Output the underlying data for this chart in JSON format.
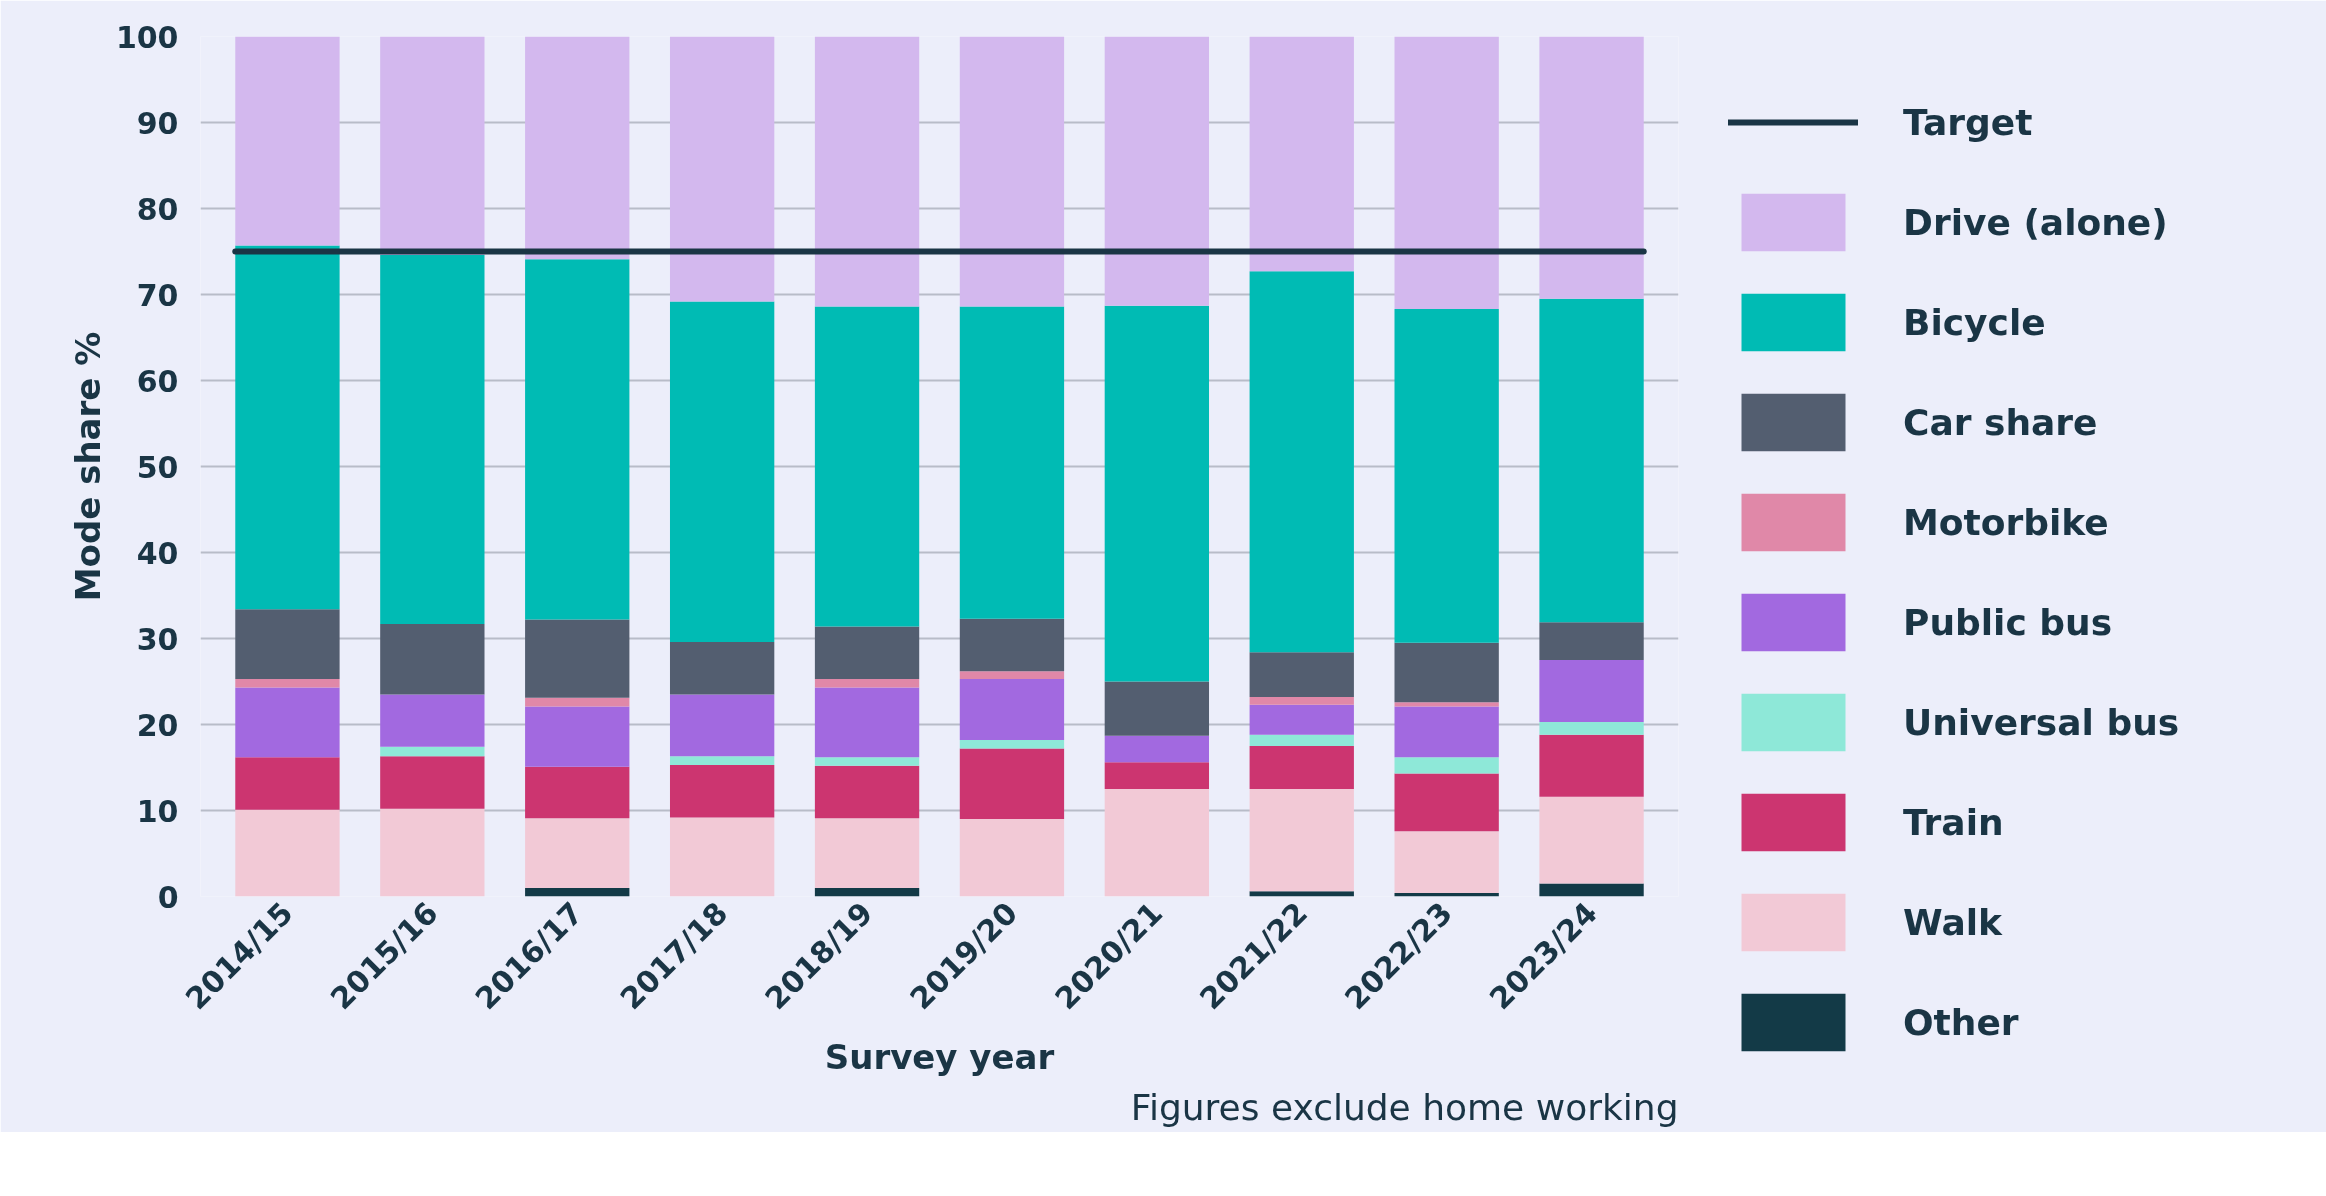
{
  "chart_data": {
    "type": "bar",
    "stacked": true,
    "xlabel": "Survey year",
    "ylabel": "Mode share %",
    "categories": [
      "2014/15",
      "2015/16",
      "2016/17",
      "2017/18",
      "2018/19",
      "2019/20",
      "2020/21",
      "2021/22",
      "2022/23",
      "2023/24"
    ],
    "series": [
      {
        "name": "Other",
        "color": "#133a47",
        "values": [
          0,
          0,
          1.0,
          0,
          1.0,
          0,
          0,
          0.6,
          0.4,
          1.5
        ]
      },
      {
        "name": "Walk",
        "color": "#f2c9d6",
        "values": [
          10.1,
          10.2,
          8.1,
          9.2,
          8.1,
          9.0,
          12.5,
          11.9,
          7.2,
          10.1
        ]
      },
      {
        "name": "Train",
        "color": "#cc3570",
        "values": [
          6.1,
          6.1,
          6.0,
          6.1,
          6.1,
          8.2,
          3.1,
          5.0,
          6.7,
          7.2
        ]
      },
      {
        "name": "Universal bus",
        "color": "#8ee8d8",
        "values": [
          0,
          1.1,
          0,
          1.0,
          1.0,
          1.0,
          0,
          1.3,
          1.9,
          1.5
        ]
      },
      {
        "name": "Public bus",
        "color": "#a269e0",
        "values": [
          8.1,
          6.1,
          7.0,
          7.2,
          8.1,
          7.1,
          3.1,
          3.5,
          5.9,
          7.2
        ]
      },
      {
        "name": "Motorbike",
        "color": "#e088a8",
        "values": [
          1.0,
          0,
          1.0,
          0,
          1.0,
          0.9,
          0,
          0.9,
          0.5,
          0
        ]
      },
      {
        "name": "Car share",
        "color": "#535e70",
        "values": [
          8.1,
          8.2,
          9.1,
          6.1,
          6.1,
          6.1,
          6.3,
          5.2,
          6.9,
          4.4
        ]
      },
      {
        "name": "Bicycle",
        "color": "#00bbb4",
        "values": [
          42.3,
          42.9,
          41.9,
          39.6,
          37.2,
          36.3,
          43.7,
          44.3,
          38.8,
          37.6
        ]
      },
      {
        "name": "Drive (alone)",
        "color": "#d3b8ee",
        "values": [
          24.3,
          25.4,
          25.9,
          30.8,
          31.4,
          31.4,
          31.3,
          27.3,
          31.7,
          30.5
        ]
      }
    ],
    "ylim": [
      0,
      100
    ],
    "yticks": [
      0,
      10,
      20,
      30,
      40,
      50,
      60,
      70,
      80,
      90,
      100
    ],
    "ref_lines": [
      {
        "axis": "y",
        "value": 75,
        "label": "Target",
        "color": "#1a3545"
      }
    ],
    "annotations": [
      "Figures exclude home working"
    ],
    "grid": "y",
    "legend": "right"
  }
}
